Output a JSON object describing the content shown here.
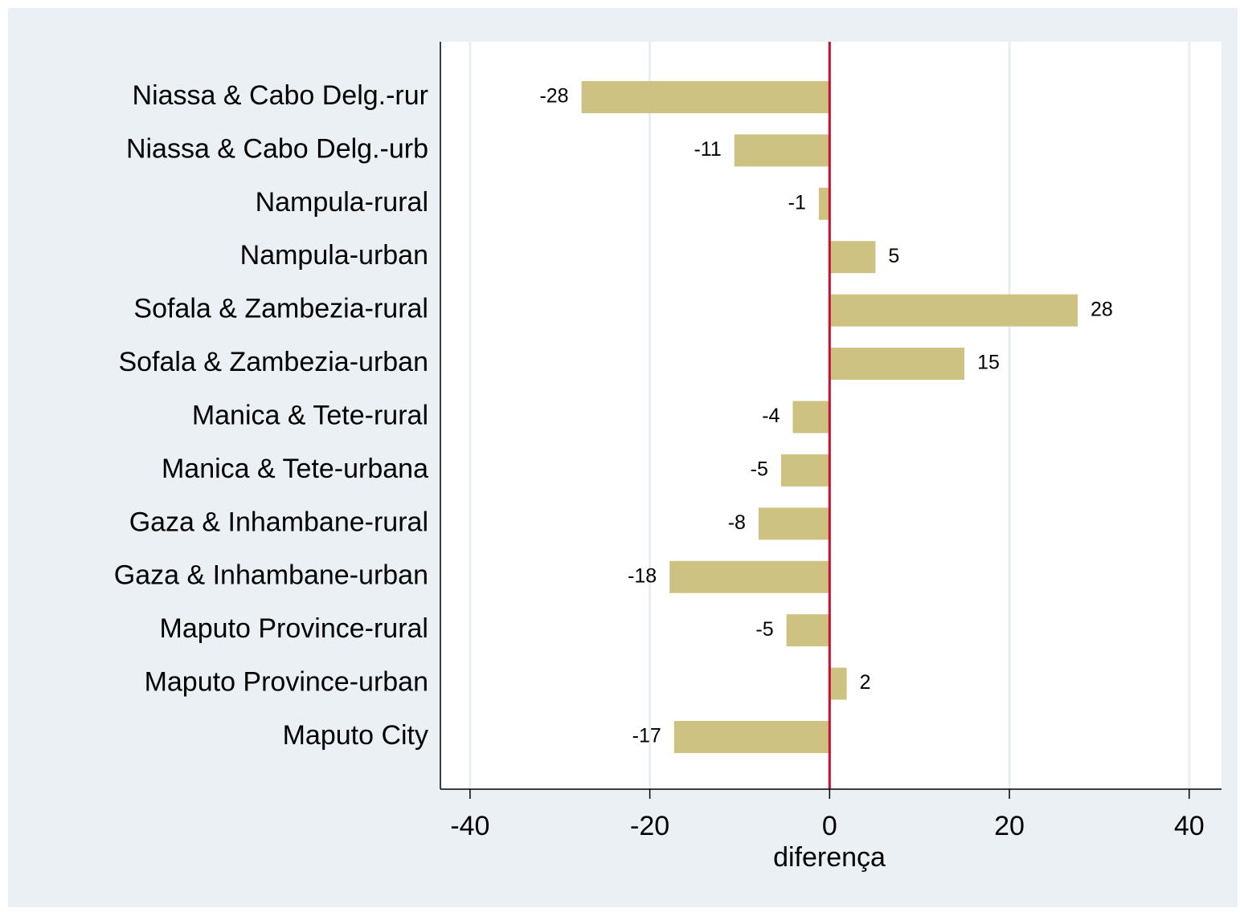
{
  "chart_data": {
    "type": "barh",
    "x_label": "diferença",
    "categories": [
      "Niassa & Cabo Delg.-rur",
      "Niassa & Cabo Delg.-urb",
      "Nampula-rural",
      "Nampula-urban",
      "Sofala & Zambezia-rural",
      "Sofala & Zambezia-urban",
      "Manica & Tete-rural",
      "Manica & Tete-urbana",
      "Gaza & Inhambane-rural",
      "Gaza & Inhambane-urban",
      "Maputo Province-rural",
      "Maputo Province-urban",
      "Maputo City"
    ],
    "values": [
      -27.6,
      -10.6,
      -1.2,
      5.1,
      27.6,
      15.0,
      -4.1,
      -5.4,
      -7.9,
      -17.8,
      -4.8,
      1.9,
      -17.3
    ],
    "value_labels": [
      "-28",
      "-11",
      "-1",
      "5",
      "28",
      "15",
      "-4",
      "-5",
      "-8",
      "-18",
      "-5",
      "2",
      "-17"
    ],
    "color": "#cdc282",
    "xlim": [
      -43.3,
      43.6
    ],
    "xticks": [
      -40,
      -20,
      0,
      20,
      40
    ],
    "grid": true,
    "reference_line": 0,
    "reference_line_color": "#c8102e"
  }
}
